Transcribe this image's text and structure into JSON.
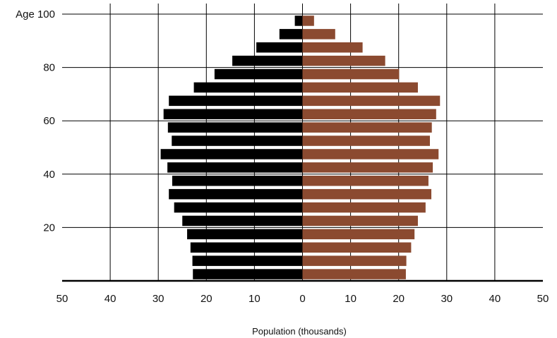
{
  "chart_data": {
    "type": "bar",
    "orientation": "horizontal",
    "title": "",
    "xlabel": "Population (thousands)",
    "ylabel": "",
    "xlim": [
      -50,
      50
    ],
    "ylim": [
      0,
      100
    ],
    "x_ticks": [
      {
        "value": -50,
        "label": "50"
      },
      {
        "value": -40,
        "label": "40"
      },
      {
        "value": -30,
        "label": "30"
      },
      {
        "value": -20,
        "label": "20"
      },
      {
        "value": -10,
        "label": "10"
      },
      {
        "value": 0,
        "label": "0"
      },
      {
        "value": 10,
        "label": "10"
      },
      {
        "value": 20,
        "label": "20"
      },
      {
        "value": 30,
        "label": "30"
      },
      {
        "value": 40,
        "label": "40"
      },
      {
        "value": 50,
        "label": "50"
      }
    ],
    "y_ticks": [
      {
        "value": 20,
        "label": "20"
      },
      {
        "value": 40,
        "label": "40"
      },
      {
        "value": 60,
        "label": "60"
      },
      {
        "value": 80,
        "label": "80"
      },
      {
        "value": 100,
        "label": "Age 100"
      }
    ],
    "grid": true,
    "legend": "none",
    "age_groups": [
      0,
      5,
      10,
      15,
      20,
      25,
      30,
      35,
      40,
      45,
      50,
      55,
      60,
      65,
      70,
      75,
      80,
      85,
      90,
      95
    ],
    "series": [
      {
        "color": "#000000",
        "side": "left",
        "values": [
          22.8,
          22.9,
          23.3,
          24.0,
          25.0,
          26.7,
          27.8,
          27.1,
          28.1,
          29.5,
          27.2,
          28.0,
          28.9,
          27.8,
          22.6,
          18.3,
          14.6,
          9.6,
          4.8,
          1.6
        ]
      },
      {
        "color": "#8b4a30",
        "side": "right",
        "values": [
          21.5,
          21.6,
          22.6,
          23.3,
          24.0,
          25.6,
          26.8,
          26.2,
          27.1,
          28.3,
          26.5,
          26.9,
          27.8,
          28.6,
          24.0,
          20.1,
          17.2,
          12.5,
          6.8,
          2.4
        ]
      }
    ]
  }
}
